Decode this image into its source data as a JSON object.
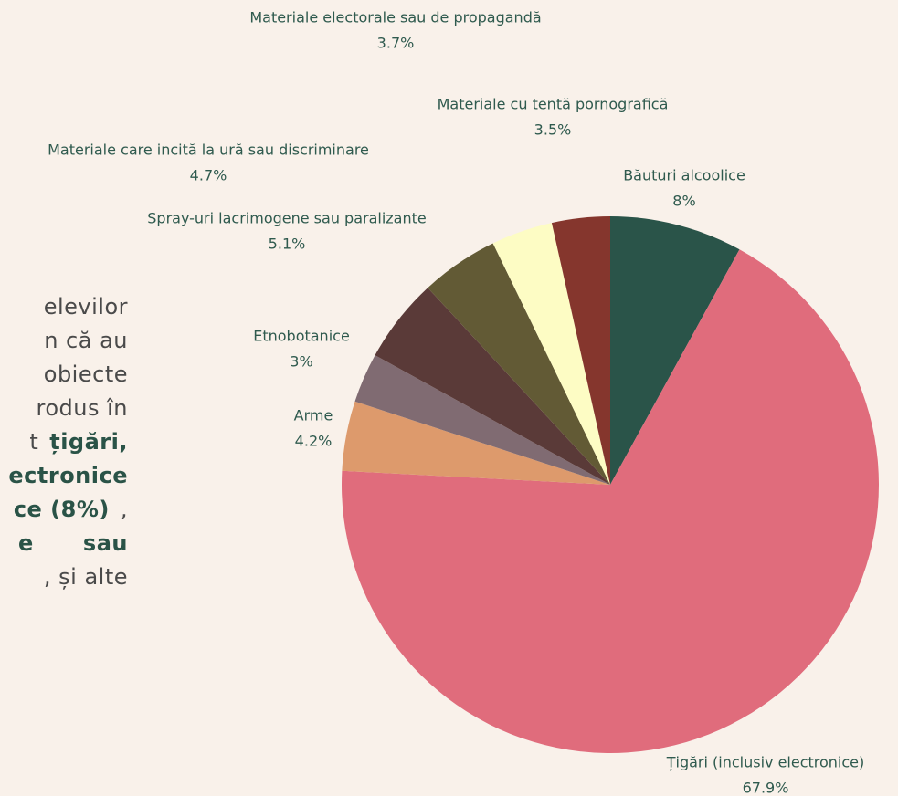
{
  "paragraph_lines": [
    [
      {
        "text": "elevilor"
      }
    ],
    [
      {
        "text": "n că au"
      }
    ],
    [
      {
        "text": "obiecte"
      }
    ],
    [
      {
        "text": "rodus în"
      }
    ],
    [
      {
        "text": "t"
      },
      {
        "text": "țigări,",
        "bold": true
      }
    ],
    [
      {
        "text": "ectronice",
        "bold": true
      }
    ],
    [
      {
        "text": "ce (8%)",
        "bold": true
      },
      {
        "text": ","
      }
    ],
    [
      {
        "text": "e",
        "bold": true
      },
      {
        "text": "sau",
        "bold": true
      }
    ],
    [
      {
        "text": ", și alte"
      }
    ]
  ],
  "chart_data": {
    "type": "pie",
    "categories": [
      "Băuturi alcoolice",
      "Țigări (inclusiv electronice)",
      "Arme",
      "Etnobotanice",
      "Spray-uri lacrimogene sau paralizante",
      "Materiale care incită la ură sau discriminare",
      "Materiale electorale sau de propagandă",
      "Materiale cu tentă pornografică"
    ],
    "values": [
      8,
      67.9,
      4.2,
      3,
      5.1,
      4.7,
      3.7,
      3.5
    ],
    "value_labels": [
      "8%",
      "67.9%",
      "4.2%",
      "3%",
      "5.1%",
      "4.7%",
      "3.7%",
      "3.5%"
    ],
    "colors": [
      "#2a5449",
      "#e06c7c",
      "#dd9a6c",
      "#806b72",
      "#5a3a38",
      "#625a35",
      "#fdfcc4",
      "#85362d"
    ]
  }
}
